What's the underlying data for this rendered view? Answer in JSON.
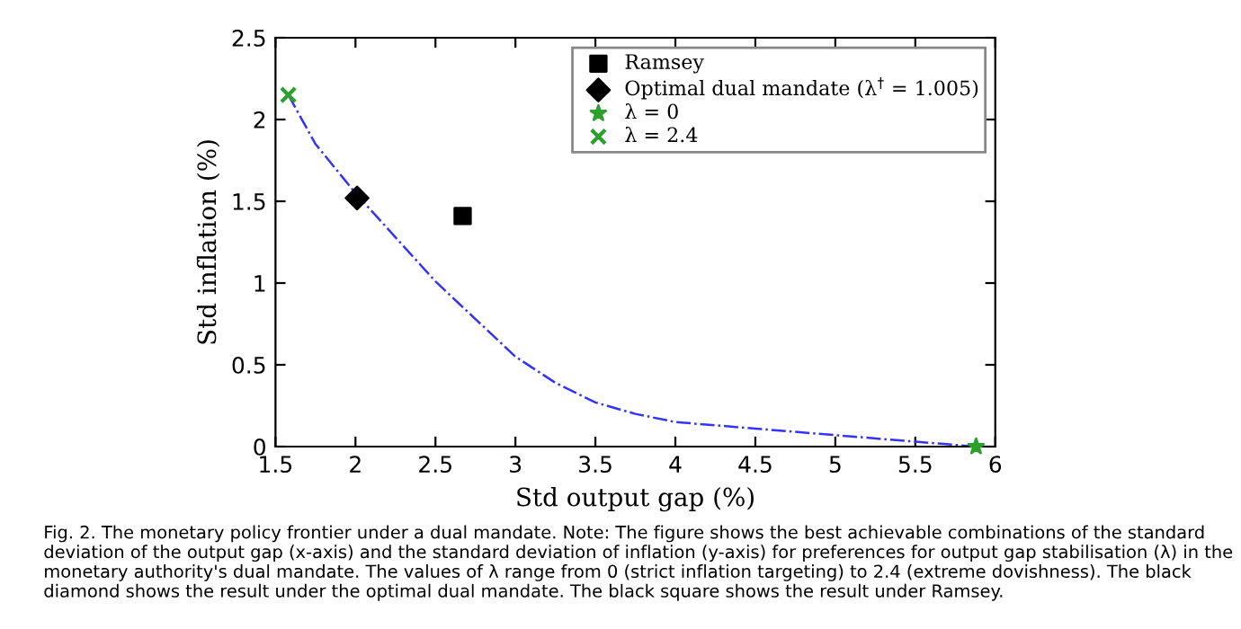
{
  "chart_data": {
    "type": "line",
    "xlabel": "Std output gap (%)",
    "ylabel": "Std inflation (%)",
    "xlim": [
      1.5,
      6
    ],
    "xticks": [
      1.5,
      2,
      2.5,
      3,
      3.5,
      4,
      4.5,
      5,
      5.5,
      6
    ],
    "ylim": [
      0,
      2.5
    ],
    "yticks": [
      0,
      0.5,
      1,
      1.5,
      2,
      2.5
    ],
    "grid": false,
    "legend": "top right",
    "series": [
      {
        "color": "#3333ff",
        "line_style": "dashdot",
        "marker": "none",
        "x": [
          1.58,
          1.75,
          2.0,
          2.25,
          2.5,
          2.75,
          3.0,
          3.25,
          3.5,
          3.75,
          4.0,
          4.5,
          5.0,
          5.5,
          5.88
        ],
        "values": [
          2.15,
          1.85,
          1.55,
          1.28,
          1.01,
          0.78,
          0.55,
          0.39,
          0.27,
          0.2,
          0.15,
          0.11,
          0.07,
          0.03,
          0.0
        ]
      },
      {
        "type": "scatter",
        "name": "Ramsey",
        "color": "#000000",
        "marker": "square",
        "x": [
          2.67
        ],
        "values": [
          1.41
        ]
      },
      {
        "type": "scatter",
        "name": "Optimal dual mandate (λ$^{†}$ = 1.005)",
        "color": "#000000",
        "marker": "diamond",
        "x": [
          2.01
        ],
        "values": [
          1.52
        ]
      },
      {
        "type": "scatter",
        "name": "λ = 0",
        "color": "#2ca02c",
        "marker": "star",
        "x": [
          5.88
        ],
        "values": [
          0.0
        ]
      },
      {
        "type": "scatter",
        "name": "λ = 2.4",
        "color": "#2ca02c",
        "marker": "cross",
        "x": [
          1.58
        ],
        "values": [
          2.15
        ]
      }
    ],
    "annotations": [
      "Fig. 2. The monetary policy frontier under a dual mandate. Note: The figure shows the best achievable combinations of the standard deviation of the output gap (x-axis) and the standard deviation of inflation (y-axis) for preferences for output gap stabilisation (λ) in the monetary authority's dual mandate. The values of λ range from 0 (strict inflation targeting) to 2.4 (extreme dovishness). The black diamond shows the result under the optimal dual mandate. The black square shows the result under Ramsey."
    ]
  }
}
